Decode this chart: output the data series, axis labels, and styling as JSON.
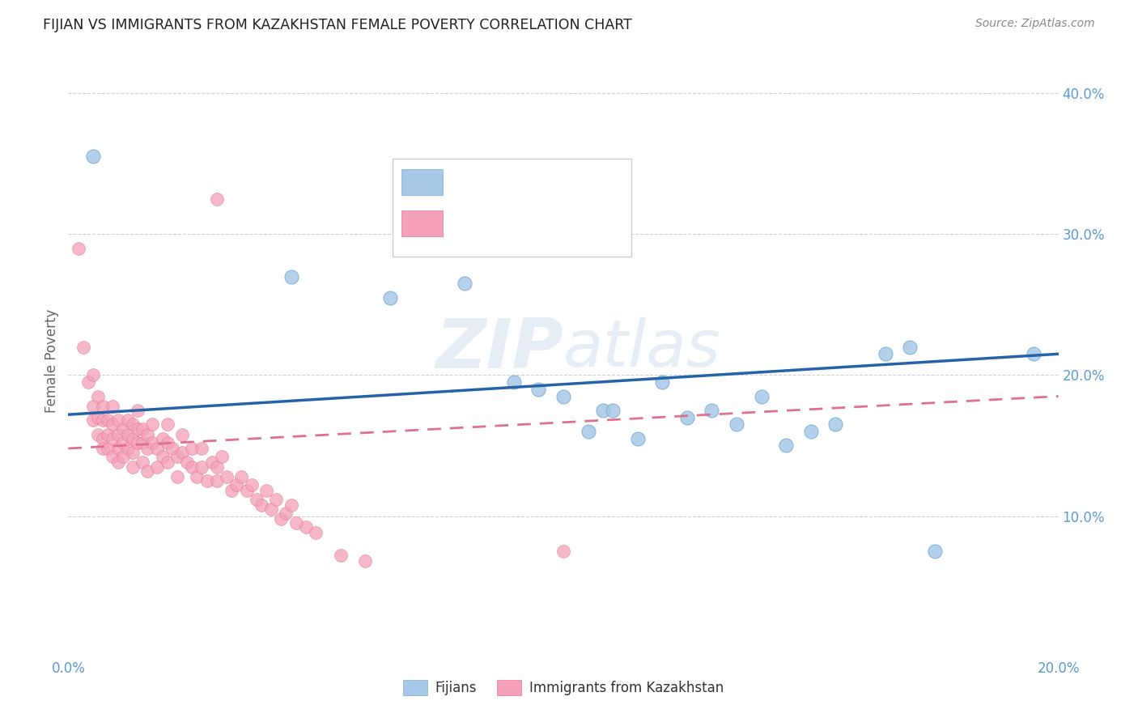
{
  "title": "FIJIAN VS IMMIGRANTS FROM KAZAKHSTAN FEMALE POVERTY CORRELATION CHART",
  "source": "Source: ZipAtlas.com",
  "ylabel": "Female Poverty",
  "xlim": [
    0.0,
    0.2
  ],
  "ylim": [
    0.0,
    0.42
  ],
  "ytick_right_labels": [
    "",
    "10.0%",
    "20.0%",
    "30.0%",
    "40.0%"
  ],
  "ytick_right_values": [
    0.0,
    0.1,
    0.2,
    0.3,
    0.4
  ],
  "title_color": "#222222",
  "axis_color": "#5b9bd5",
  "watermark": "ZIPatlas",
  "fijian_color": "#a8c8e8",
  "fijian_edge_color": "#7aafd4",
  "kazakh_color": "#f4a0b8",
  "kazakh_edge_color": "#e07898",
  "fijian_line_color": "#2563a8",
  "kazakh_line_color": "#e07090",
  "background_color": "#ffffff",
  "fijian_trend_x": [
    0.0,
    0.2
  ],
  "fijian_trend_y": [
    0.172,
    0.215
  ],
  "kazakh_trend_x": [
    0.0,
    0.2
  ],
  "kazakh_trend_y": [
    0.148,
    0.185
  ],
  "fijian_points": [
    [
      0.005,
      0.355
    ],
    [
      0.045,
      0.27
    ],
    [
      0.065,
      0.255
    ],
    [
      0.08,
      0.265
    ],
    [
      0.09,
      0.195
    ],
    [
      0.095,
      0.19
    ],
    [
      0.1,
      0.185
    ],
    [
      0.105,
      0.16
    ],
    [
      0.108,
      0.175
    ],
    [
      0.11,
      0.175
    ],
    [
      0.115,
      0.155
    ],
    [
      0.12,
      0.195
    ],
    [
      0.125,
      0.17
    ],
    [
      0.13,
      0.175
    ],
    [
      0.135,
      0.165
    ],
    [
      0.14,
      0.185
    ],
    [
      0.145,
      0.15
    ],
    [
      0.15,
      0.16
    ],
    [
      0.155,
      0.165
    ],
    [
      0.165,
      0.215
    ],
    [
      0.17,
      0.22
    ],
    [
      0.175,
      0.075
    ],
    [
      0.195,
      0.215
    ]
  ],
  "kazakh_points": [
    [
      0.002,
      0.29
    ],
    [
      0.003,
      0.22
    ],
    [
      0.004,
      0.195
    ],
    [
      0.005,
      0.2
    ],
    [
      0.005,
      0.178
    ],
    [
      0.005,
      0.168
    ],
    [
      0.006,
      0.185
    ],
    [
      0.006,
      0.17
    ],
    [
      0.006,
      0.158
    ],
    [
      0.007,
      0.178
    ],
    [
      0.007,
      0.168
    ],
    [
      0.007,
      0.155
    ],
    [
      0.007,
      0.148
    ],
    [
      0.008,
      0.168
    ],
    [
      0.008,
      0.158
    ],
    [
      0.008,
      0.148
    ],
    [
      0.009,
      0.178
    ],
    [
      0.009,
      0.165
    ],
    [
      0.009,
      0.155
    ],
    [
      0.009,
      0.142
    ],
    [
      0.01,
      0.168
    ],
    [
      0.01,
      0.158
    ],
    [
      0.01,
      0.148
    ],
    [
      0.01,
      0.138
    ],
    [
      0.011,
      0.162
    ],
    [
      0.011,
      0.152
    ],
    [
      0.011,
      0.142
    ],
    [
      0.012,
      0.168
    ],
    [
      0.012,
      0.158
    ],
    [
      0.012,
      0.148
    ],
    [
      0.013,
      0.165
    ],
    [
      0.013,
      0.155
    ],
    [
      0.013,
      0.145
    ],
    [
      0.013,
      0.135
    ],
    [
      0.014,
      0.175
    ],
    [
      0.014,
      0.162
    ],
    [
      0.014,
      0.152
    ],
    [
      0.015,
      0.162
    ],
    [
      0.015,
      0.152
    ],
    [
      0.015,
      0.138
    ],
    [
      0.016,
      0.158
    ],
    [
      0.016,
      0.148
    ],
    [
      0.016,
      0.132
    ],
    [
      0.017,
      0.165
    ],
    [
      0.017,
      0.152
    ],
    [
      0.018,
      0.148
    ],
    [
      0.018,
      0.135
    ],
    [
      0.019,
      0.155
    ],
    [
      0.019,
      0.142
    ],
    [
      0.02,
      0.165
    ],
    [
      0.02,
      0.152
    ],
    [
      0.02,
      0.138
    ],
    [
      0.021,
      0.148
    ],
    [
      0.022,
      0.142
    ],
    [
      0.022,
      0.128
    ],
    [
      0.023,
      0.158
    ],
    [
      0.023,
      0.145
    ],
    [
      0.024,
      0.138
    ],
    [
      0.025,
      0.148
    ],
    [
      0.025,
      0.135
    ],
    [
      0.026,
      0.128
    ],
    [
      0.027,
      0.148
    ],
    [
      0.027,
      0.135
    ],
    [
      0.028,
      0.125
    ],
    [
      0.029,
      0.138
    ],
    [
      0.03,
      0.325
    ],
    [
      0.03,
      0.135
    ],
    [
      0.03,
      0.125
    ],
    [
      0.031,
      0.142
    ],
    [
      0.032,
      0.128
    ],
    [
      0.033,
      0.118
    ],
    [
      0.034,
      0.122
    ],
    [
      0.035,
      0.128
    ],
    [
      0.036,
      0.118
    ],
    [
      0.037,
      0.122
    ],
    [
      0.038,
      0.112
    ],
    [
      0.039,
      0.108
    ],
    [
      0.04,
      0.118
    ],
    [
      0.041,
      0.105
    ],
    [
      0.042,
      0.112
    ],
    [
      0.043,
      0.098
    ],
    [
      0.044,
      0.102
    ],
    [
      0.045,
      0.108
    ],
    [
      0.046,
      0.095
    ],
    [
      0.048,
      0.092
    ],
    [
      0.05,
      0.088
    ],
    [
      0.055,
      0.072
    ],
    [
      0.06,
      0.068
    ],
    [
      0.1,
      0.075
    ]
  ]
}
